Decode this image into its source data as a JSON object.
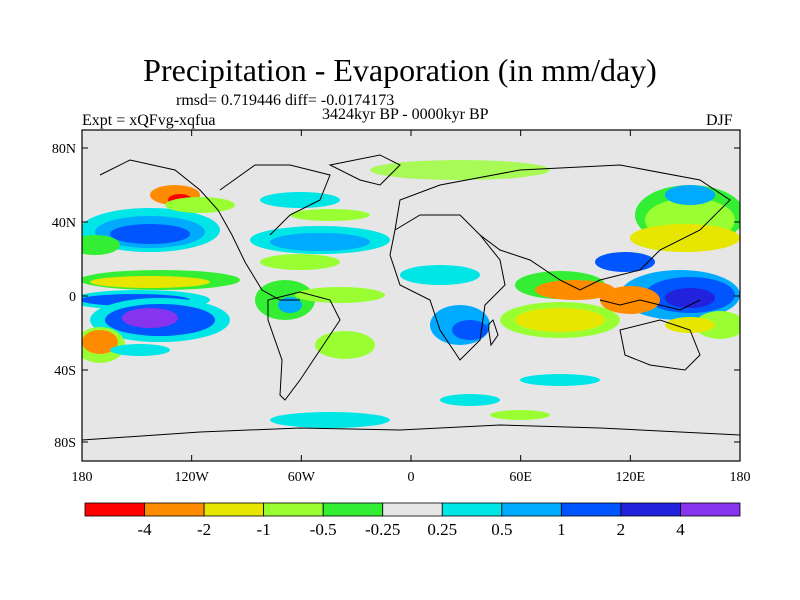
{
  "title": "Precipitation - Evaporation (in mm/day)",
  "stats": "rmsd= 0.719446 diff= -0.0174173",
  "period": "3424kyr BP - 0000kyr BP",
  "experiment": "Expt = xQFvg-xqfua",
  "season": "DJF",
  "axes": {
    "lat_ticks": [
      "80N",
      "40N",
      "0",
      "40S",
      "80S"
    ],
    "lon_ticks": [
      "180",
      "120W",
      "60W",
      "0",
      "60E",
      "120E",
      "180"
    ]
  },
  "colorbar": {
    "colors": [
      "#ff0000",
      "#ff8c00",
      "#e6e600",
      "#99ff33",
      "#33ee33",
      "#e6e6e6",
      "#00e6e6",
      "#00aaff",
      "#0055ff",
      "#2222dd",
      "#8833ee"
    ],
    "labels": [
      "-4",
      "-2",
      "-1",
      "-0.5",
      "-0.25",
      "0.25",
      "0.5",
      "1",
      "2",
      "4"
    ]
  }
}
